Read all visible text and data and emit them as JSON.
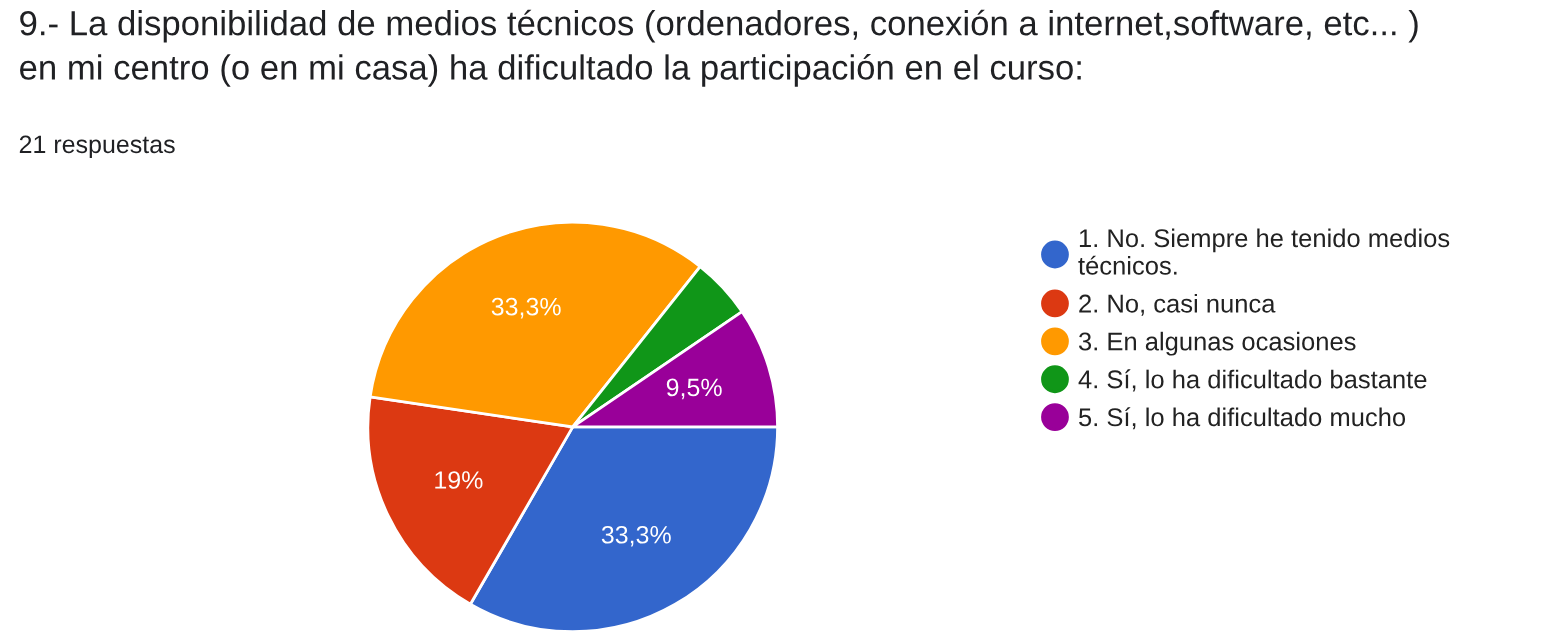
{
  "chart_data": {
    "type": "pie",
    "title": "9.- La disponibilidad de medios técnicos (ordenadores, conexión a internet,software, etc... )\nen mi centro (o en mi casa) ha dificultado la participación en el curso:",
    "subtitle": "21 respuestas",
    "categories": [
      "1. No. Siempre he tenido medios\ntécnicos.",
      "2. No, casi nunca",
      "3. En algunas ocasiones",
      "4. Sí, lo ha dificultado bastante",
      "5. Sí, lo ha dificultado mucho"
    ],
    "values": [
      33.3,
      19,
      33.3,
      4.8,
      9.5
    ],
    "colors": [
      "#3366cc",
      "#dc3912",
      "#ff9900",
      "#109618",
      "#990099"
    ],
    "value_labels": [
      "33,3%",
      "19%",
      "33,3%",
      null,
      "9,5%"
    ],
    "legend": "right"
  }
}
